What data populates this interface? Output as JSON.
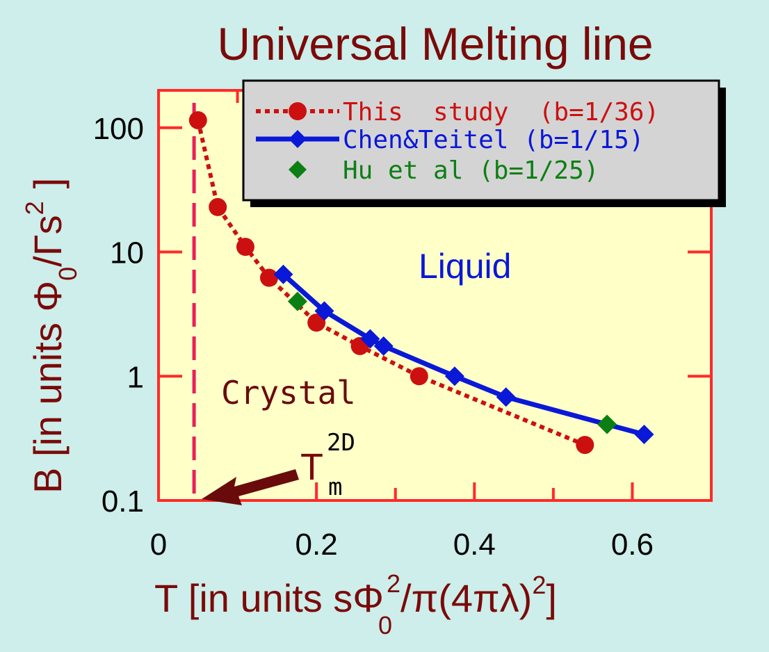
{
  "chart_data": {
    "type": "line",
    "title": "Universal Melting line",
    "xlabel": {
      "main": "T  [in units sΦ",
      "sub": "0",
      "sup": "2",
      "tail": "/π(4πλ)",
      "sup2": "2",
      "close": "]"
    },
    "ylabel": {
      "main": "B  [in units Φ",
      "sub": "0",
      "mid": "/Γs",
      "sup": "2",
      "close": "]"
    },
    "xlim": [
      0,
      0.7
    ],
    "ylim": [
      0.1,
      200
    ],
    "yscale": "log",
    "xticks": [
      {
        "value": 0,
        "label": "0"
      },
      {
        "value": 0.2,
        "label": "0.2"
      },
      {
        "value": 0.4,
        "label": "0.4"
      },
      {
        "value": 0.6,
        "label": "0.6"
      }
    ],
    "yticks": [
      {
        "value": 100,
        "label": "100"
      },
      {
        "value": 10,
        "label": "10"
      },
      {
        "value": 1,
        "label": "1"
      },
      {
        "value": 0.1,
        "label": "0.1"
      }
    ],
    "series": [
      {
        "name": "This  study  (b=1/36)",
        "color": "#cc1010",
        "marker": "circle",
        "line": "dotted",
        "x": [
          0.05,
          0.075,
          0.11,
          0.14,
          0.2,
          0.255,
          0.33,
          0.54
        ],
        "y": [
          115,
          23,
          11,
          6.2,
          2.7,
          1.75,
          1.0,
          0.28
        ]
      },
      {
        "name": "Chen&Teitel (b=1/15)",
        "color": "#0a18d8",
        "marker": "diamond",
        "line": "solid",
        "x": [
          0.158,
          0.21,
          0.268,
          0.285,
          0.375,
          0.44,
          0.615
        ],
        "y": [
          6.6,
          3.35,
          2.0,
          1.75,
          1.0,
          0.68,
          0.34
        ]
      },
      {
        "name": "Hu et al (b=1/25)",
        "color": "#0c7f14",
        "marker": "diamond",
        "line": "none",
        "x": [
          0.176,
          0.568
        ],
        "y": [
          4.0,
          0.41
        ]
      }
    ],
    "annotations": {
      "liquid": "Liquid",
      "crystal": "Crystal",
      "tm_main": "T",
      "tm_sup": "2D",
      "tm_sub": "m",
      "tm_x": 0.045
    },
    "legend_placement": "top-right",
    "grid": false,
    "colors": {
      "plot_bg": "#ffffc8",
      "frame": "#ff2a2a",
      "page_bg": "#cdeeea",
      "legend_bg": "#d4d4d4",
      "tm_line": "#e8205a",
      "arrow": "#6a0b0b",
      "label": "#7a0a0a"
    }
  }
}
